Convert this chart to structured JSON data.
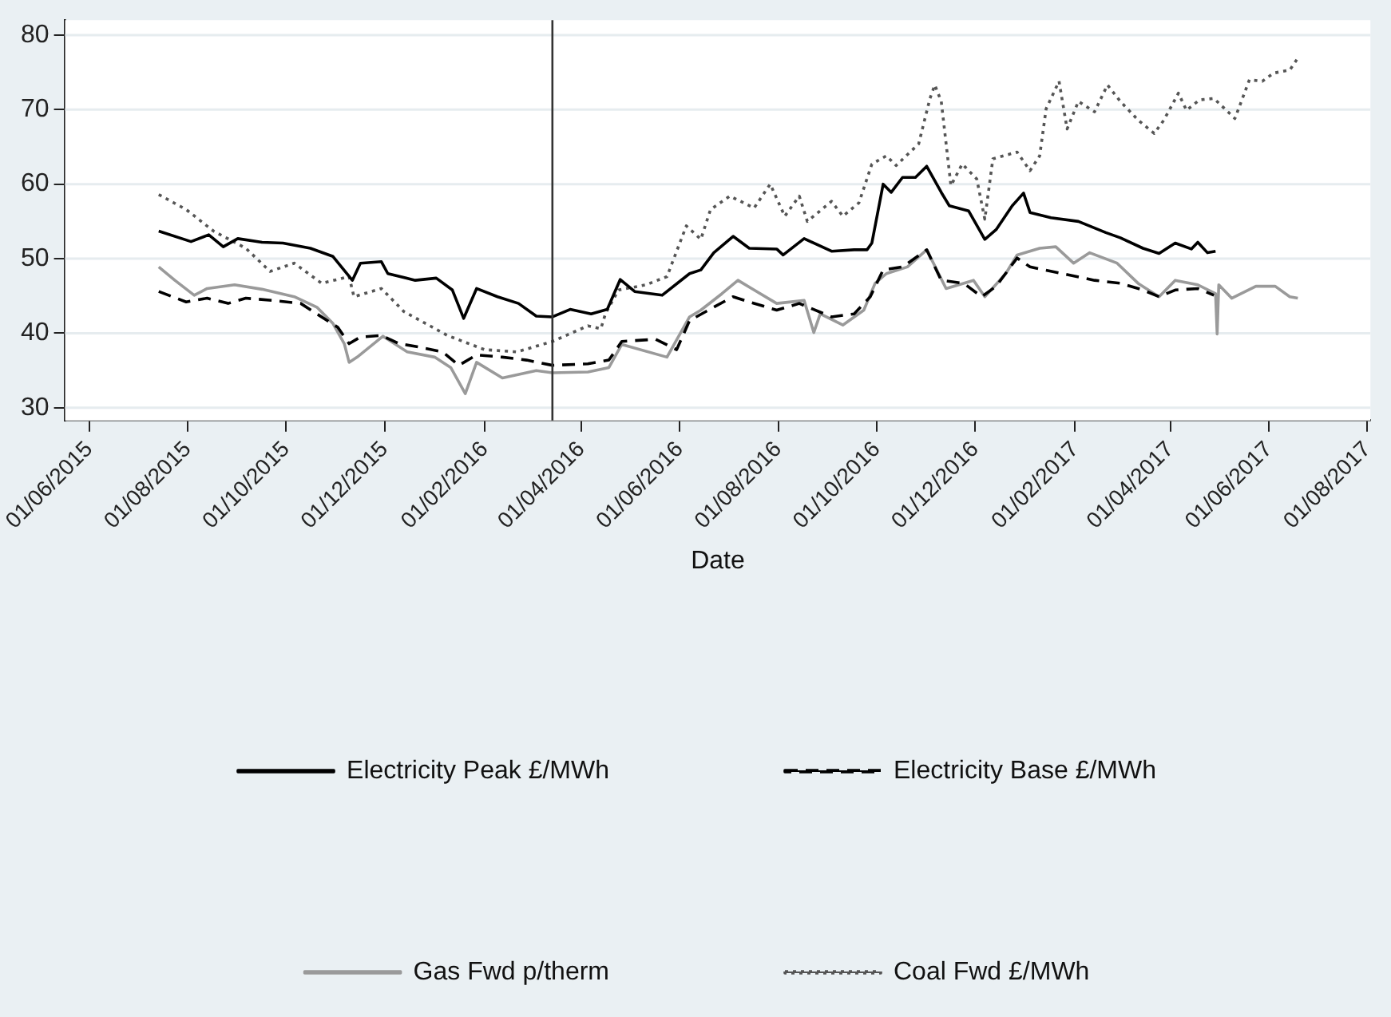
{
  "chart_data": {
    "type": "line",
    "xlabel": "Date",
    "legend": "bottom",
    "grid": "y",
    "xlim": [
      "2015-05-17",
      "2017-08-03"
    ],
    "ylim": [
      28.3,
      82
    ],
    "xticks": [
      {
        "value": "2015-06-01",
        "label": "01/06/2015"
      },
      {
        "value": "2015-08-01",
        "label": "01/08/2015"
      },
      {
        "value": "2015-10-01",
        "label": "01/10/2015"
      },
      {
        "value": "2015-12-01",
        "label": "01/12/2015"
      },
      {
        "value": "2016-02-01",
        "label": "01/02/2016"
      },
      {
        "value": "2016-04-01",
        "label": "01/04/2016"
      },
      {
        "value": "2016-06-01",
        "label": "01/06/2016"
      },
      {
        "value": "2016-08-01",
        "label": "01/08/2016"
      },
      {
        "value": "2016-10-01",
        "label": "01/10/2016"
      },
      {
        "value": "2016-12-01",
        "label": "01/12/2016"
      },
      {
        "value": "2017-02-01",
        "label": "01/02/2017"
      },
      {
        "value": "2017-04-01",
        "label": "01/04/2017"
      },
      {
        "value": "2017-06-01",
        "label": "01/06/2017"
      },
      {
        "value": "2017-08-01",
        "label": "01/08/2017"
      }
    ],
    "yticks": [
      30,
      40,
      50,
      60,
      70,
      80
    ],
    "ref_lines": [
      {
        "axis": "x",
        "value": "2016-03-14",
        "color": "#333333",
        "line_style": "solid"
      }
    ],
    "series": [
      {
        "name": "Electricity Peak £/MWh",
        "color": "#000000",
        "line_style": "solid",
        "x": [
          "2015-07-14",
          "2015-08-03",
          "2015-08-14",
          "2015-08-23",
          "2015-09-01",
          "2015-09-16",
          "2015-09-29",
          "2015-10-16",
          "2015-10-30",
          "2015-11-11",
          "2015-11-16",
          "2015-11-29",
          "2015-12-03",
          "2015-12-20",
          "2016-01-02",
          "2016-01-12",
          "2016-01-19",
          "2016-01-27",
          "2016-02-09",
          "2016-02-22",
          "2016-03-04",
          "2016-03-14",
          "2016-03-25",
          "2016-04-07",
          "2016-04-17",
          "2016-04-25",
          "2016-05-04",
          "2016-05-21",
          "2016-06-07",
          "2016-06-14",
          "2016-06-22",
          "2016-07-04",
          "2016-07-14",
          "2016-07-31",
          "2016-08-04",
          "2016-08-17",
          "2016-09-03",
          "2016-09-17",
          "2016-09-25",
          "2016-09-28",
          "2016-10-05",
          "2016-10-10",
          "2016-10-17",
          "2016-10-25",
          "2016-11-01",
          "2016-11-10",
          "2016-11-15",
          "2016-11-27",
          "2016-12-07",
          "2016-12-14",
          "2016-12-24",
          "2016-12-31",
          "2017-01-04",
          "2017-01-17",
          "2017-02-03",
          "2017-02-20",
          "2017-03-01",
          "2017-03-15",
          "2017-03-25",
          "2017-04-04",
          "2017-04-14",
          "2017-04-18",
          "2017-04-24",
          "2017-04-29"
        ],
        "values": [
          53.7,
          52.3,
          53.2,
          51.6,
          52.7,
          52.2,
          52.1,
          51.4,
          50.3,
          47.1,
          49.4,
          49.6,
          48.0,
          47.1,
          47.4,
          45.8,
          42.0,
          46.0,
          44.9,
          44.0,
          42.3,
          42.2,
          43.2,
          42.6,
          43.2,
          47.2,
          45.6,
          45.1,
          48.0,
          48.5,
          50.8,
          53.0,
          51.4,
          51.3,
          50.5,
          52.7,
          51.0,
          51.2,
          51.2,
          52.1,
          60.0,
          58.9,
          60.9,
          60.9,
          62.4,
          58.9,
          57.1,
          56.4,
          52.6,
          53.9,
          57.1,
          58.8,
          56.2,
          55.5,
          55.0,
          53.5,
          52.8,
          51.4,
          50.7,
          52.1,
          51.3,
          52.2,
          50.8,
          51.0
        ]
      },
      {
        "name": "Electricity Base £/MWh",
        "color": "#000000",
        "line_style": "dashed",
        "x": [
          "2015-07-14",
          "2015-07-31",
          "2015-08-13",
          "2015-08-26",
          "2015-09-06",
          "2015-09-23",
          "2015-10-10",
          "2015-10-20",
          "2015-11-02",
          "2015-11-09",
          "2015-11-16",
          "2015-11-29",
          "2015-12-10",
          "2015-12-21",
          "2016-01-06",
          "2016-01-16",
          "2016-01-27",
          "2016-02-12",
          "2016-02-27",
          "2016-03-14",
          "2016-04-05",
          "2016-04-18",
          "2016-04-26",
          "2016-05-17",
          "2016-05-30",
          "2016-06-07",
          "2016-06-22",
          "2016-07-04",
          "2016-07-14",
          "2016-07-31",
          "2016-08-14",
          "2016-09-03",
          "2016-09-17",
          "2016-09-27",
          "2016-10-05",
          "2016-10-17",
          "2016-11-01",
          "2016-11-10",
          "2016-11-24",
          "2016-12-05",
          "2016-12-14",
          "2016-12-27",
          "2017-01-04",
          "2017-01-24",
          "2017-02-13",
          "2017-03-01",
          "2017-03-15",
          "2017-03-25",
          "2017-04-04",
          "2017-04-18",
          "2017-04-28"
        ],
        "values": [
          45.6,
          44.2,
          44.7,
          44.0,
          44.7,
          44.4,
          44.0,
          42.6,
          40.8,
          38.6,
          39.5,
          39.7,
          38.6,
          38.2,
          37.5,
          35.7,
          37.1,
          36.8,
          36.4,
          35.7,
          35.9,
          36.4,
          38.9,
          39.2,
          37.8,
          41.7,
          43.5,
          44.9,
          44.2,
          43.1,
          44.0,
          42.2,
          42.6,
          44.9,
          48.5,
          48.9,
          51.2,
          47.1,
          46.7,
          44.9,
          46.3,
          50.1,
          48.9,
          48.0,
          47.1,
          46.7,
          45.8,
          44.9,
          45.8,
          46.0,
          45.1
        ]
      },
      {
        "name": "Gas Fwd p/therm",
        "color": "#9a9a9a",
        "line_style": "solid",
        "x": [
          "2015-07-14",
          "2015-07-24",
          "2015-08-05",
          "2015-08-13",
          "2015-08-30",
          "2015-09-16",
          "2015-10-06",
          "2015-10-20",
          "2015-10-30",
          "2015-11-06",
          "2015-11-09",
          "2015-11-14",
          "2015-11-30",
          "2015-12-15",
          "2016-01-01",
          "2016-01-11",
          "2016-01-20",
          "2016-01-27",
          "2016-02-12",
          "2016-03-04",
          "2016-03-14",
          "2016-04-05",
          "2016-04-18",
          "2016-04-26",
          "2016-05-24",
          "2016-06-07",
          "2016-06-14",
          "2016-06-27",
          "2016-07-07",
          "2016-07-17",
          "2016-07-31",
          "2016-08-17",
          "2016-08-23",
          "2016-08-27",
          "2016-09-10",
          "2016-09-23",
          "2016-09-30",
          "2016-10-07",
          "2016-10-20",
          "2016-11-01",
          "2016-11-13",
          "2016-11-30",
          "2016-12-07",
          "2016-12-20",
          "2016-12-27",
          "2017-01-10",
          "2017-01-20",
          "2017-01-31",
          "2017-02-10",
          "2017-02-27",
          "2017-03-12",
          "2017-03-25",
          "2017-04-04",
          "2017-04-18",
          "2017-04-29",
          "2017-04-30",
          "2017-05-01",
          "2017-05-09",
          "2017-05-24",
          "2017-06-05",
          "2017-06-14",
          "2017-06-19"
        ],
        "values": [
          48.9,
          47.1,
          45.1,
          46.0,
          46.5,
          45.9,
          44.9,
          43.5,
          41.3,
          38.6,
          36.1,
          36.8,
          39.6,
          37.5,
          36.8,
          35.4,
          31.9,
          36.1,
          34.0,
          35.0,
          34.7,
          34.8,
          35.4,
          38.5,
          36.8,
          42.2,
          43.1,
          45.3,
          47.1,
          45.8,
          44.0,
          44.4,
          40.1,
          42.6,
          41.1,
          43.1,
          46.7,
          48.0,
          48.9,
          51.2,
          46.0,
          47.1,
          44.9,
          48.0,
          50.5,
          51.4,
          51.6,
          49.4,
          50.8,
          49.4,
          46.7,
          44.9,
          47.1,
          46.5,
          45.3,
          39.9,
          46.5,
          44.7,
          46.3,
          46.3,
          44.9,
          44.7
        ]
      },
      {
        "name": "Coal Fwd £/MWh",
        "color": "#555555",
        "line_style": "dotted",
        "x": [
          "2015-07-14",
          "2015-07-31",
          "2015-08-17",
          "2015-09-06",
          "2015-09-21",
          "2015-10-06",
          "2015-10-23",
          "2015-11-09",
          "2015-11-12",
          "2015-11-29",
          "2015-12-13",
          "2016-01-09",
          "2016-02-01",
          "2016-02-21",
          "2016-03-14",
          "2016-04-05",
          "2016-04-13",
          "2016-04-16",
          "2016-04-24",
          "2016-05-11",
          "2016-05-24",
          "2016-06-05",
          "2016-06-14",
          "2016-06-20",
          "2016-07-02",
          "2016-07-17",
          "2016-07-27",
          "2016-08-05",
          "2016-08-14",
          "2016-08-19",
          "2016-09-03",
          "2016-09-10",
          "2016-09-20",
          "2016-09-28",
          "2016-10-07",
          "2016-10-13",
          "2016-10-27",
          "2016-11-03",
          "2016-11-06",
          "2016-11-10",
          "2016-11-16",
          "2016-11-23",
          "2016-12-02",
          "2016-12-07",
          "2016-12-12",
          "2016-12-27",
          "2017-01-04",
          "2017-01-10",
          "2017-01-14",
          "2017-01-22",
          "2017-01-27",
          "2017-02-03",
          "2017-02-13",
          "2017-02-21",
          "2017-03-01",
          "2017-03-12",
          "2017-03-22",
          "2017-03-28",
          "2017-04-06",
          "2017-04-11",
          "2017-04-19",
          "2017-04-28",
          "2017-05-11",
          "2017-05-20",
          "2017-05-28",
          "2017-06-04",
          "2017-06-14",
          "2017-06-19"
        ],
        "values": [
          58.6,
          56.6,
          53.7,
          51.4,
          48.3,
          49.4,
          46.7,
          47.6,
          44.9,
          46.0,
          42.9,
          39.7,
          37.8,
          37.5,
          38.9,
          41.0,
          40.6,
          42.7,
          45.8,
          46.5,
          47.6,
          54.4,
          52.6,
          56.6,
          58.4,
          56.8,
          60.0,
          55.7,
          58.4,
          55.0,
          57.7,
          55.7,
          57.5,
          62.7,
          63.8,
          62.5,
          65.4,
          71.5,
          73.3,
          71.1,
          59.8,
          62.7,
          60.7,
          55.3,
          63.4,
          64.3,
          61.8,
          63.8,
          70.1,
          73.8,
          67.4,
          71.1,
          69.7,
          73.3,
          71.1,
          68.6,
          66.8,
          68.6,
          72.2,
          69.9,
          71.3,
          71.5,
          68.8,
          74.0,
          73.8,
          74.9,
          75.3,
          76.9
        ]
      }
    ]
  }
}
